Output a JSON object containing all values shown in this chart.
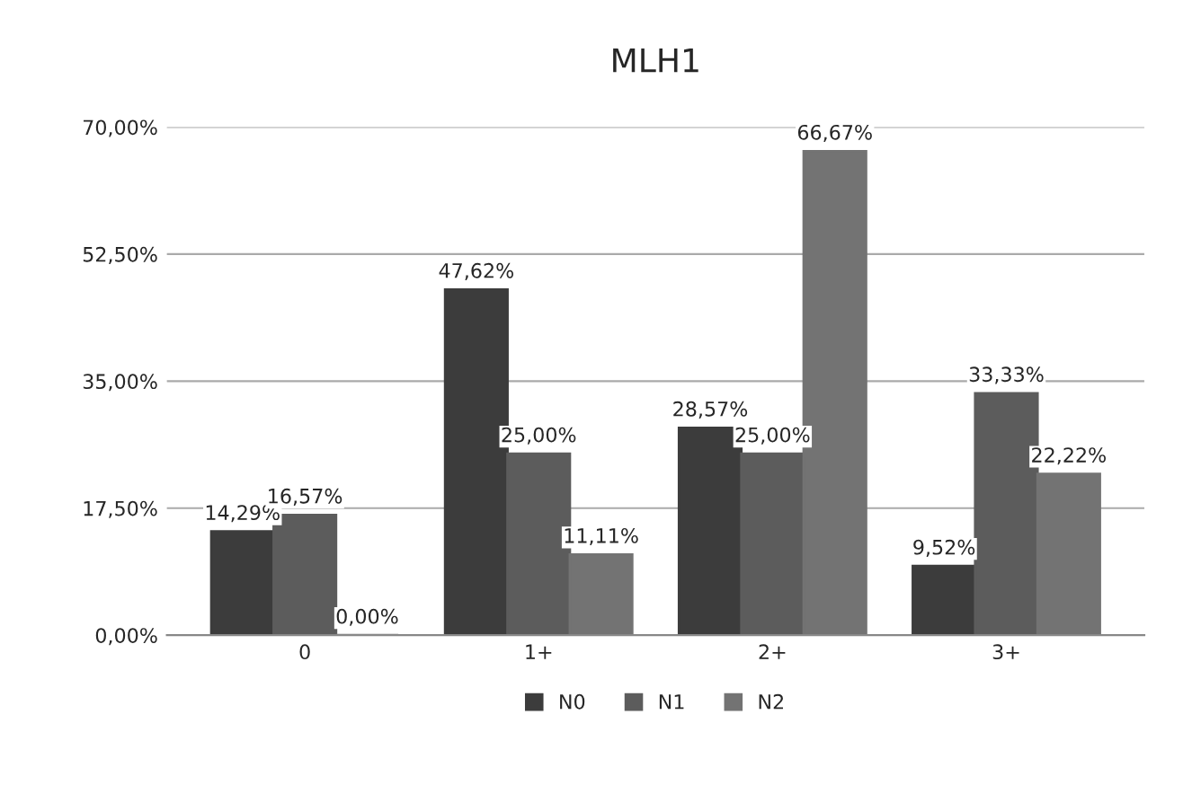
{
  "chart_data": {
    "type": "bar",
    "title": "MLH1",
    "categories": [
      "0",
      "1+",
      "2+",
      "3+"
    ],
    "series": [
      {
        "name": "N0",
        "color": "#3c3c3c",
        "values": [
          14.29,
          47.62,
          28.57,
          9.52
        ],
        "value_labels": [
          "14,29%",
          "47,62%",
          "28,57%",
          "9,52%"
        ]
      },
      {
        "name": "N1",
        "color": "#5c5c5c",
        "values": [
          16.57,
          25.0,
          25.0,
          33.33
        ],
        "value_labels": [
          "16,57%",
          "25,00%",
          "25,00%",
          "33,33%"
        ]
      },
      {
        "name": "N2",
        "color": "#737373",
        "values": [
          0.0,
          11.11,
          66.67,
          22.22
        ],
        "value_labels": [
          "0,00%",
          "11,11%",
          "66,67%",
          "22,22%"
        ]
      }
    ],
    "ylim": [
      0,
      70
    ],
    "yticks": [
      {
        "value": 0,
        "label": "0,00%"
      },
      {
        "value": 17.5,
        "label": "17,50%"
      },
      {
        "value": 35,
        "label": "35,00%"
      },
      {
        "value": 52.5,
        "label": "52,50%"
      },
      {
        "value": 70,
        "label": "70,00%"
      }
    ],
    "grid": "y",
    "legend": "bottom"
  }
}
